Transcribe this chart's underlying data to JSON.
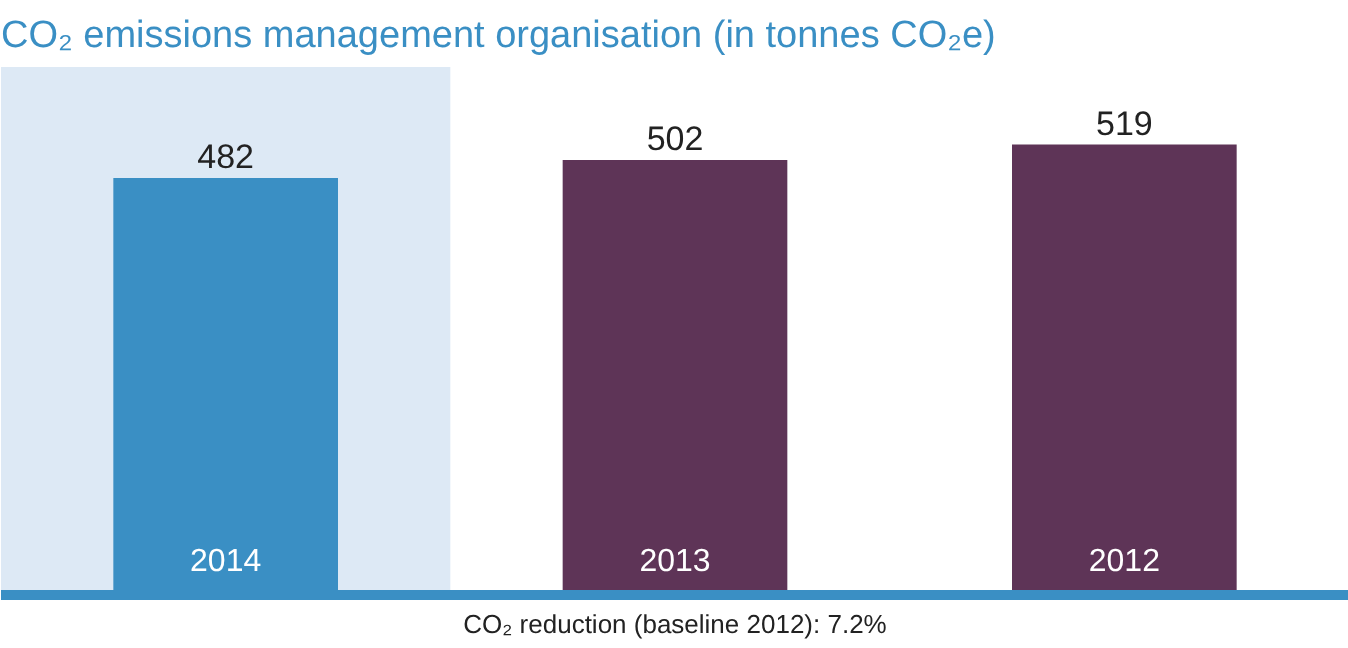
{
  "chart_data": {
    "type": "bar",
    "title": "CO₂ emissions management organisation (in tonnes CO₂e)",
    "categories": [
      "2014",
      "2013",
      "2012"
    ],
    "values": [
      482,
      502,
      519
    ],
    "colors": [
      "#3a8fc4",
      "#5e3457",
      "#5e3457"
    ],
    "ylim": [
      20,
      605
    ],
    "data_labels": true,
    "grid": false,
    "bands": [
      {
        "axis": "x",
        "from": "2014",
        "to": "2014",
        "color": "#dde9f5"
      }
    ],
    "annotations": [
      "CO₂ reduction (baseline 2012): 7.2%"
    ]
  }
}
